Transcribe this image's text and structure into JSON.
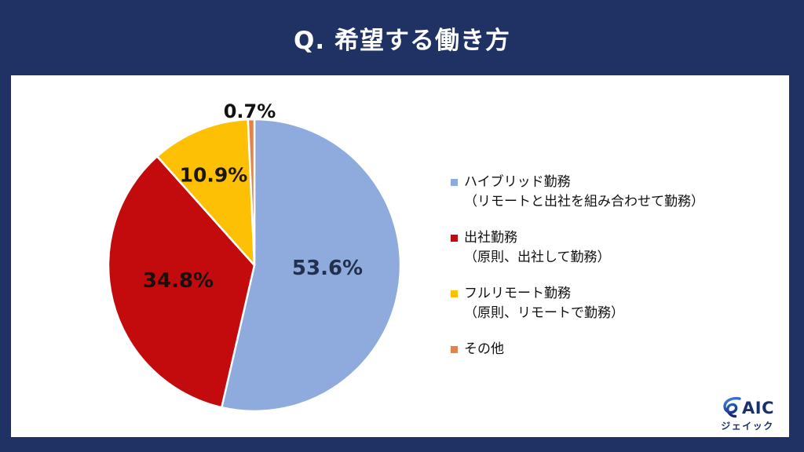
{
  "header": {
    "title": "Q. 希望する働き方"
  },
  "chart_data": {
    "type": "pie",
    "title": "Q. 希望する働き方",
    "unit": "%",
    "direction": "clockwise",
    "start_angle_deg": 0,
    "legend_position": "right",
    "slices": [
      {
        "label": "ハイブリッド勤務",
        "sublabel": "（リモートと出社を組み合わせて勤務）",
        "value": 53.6,
        "display": "53.6%",
        "color": "#8faadc",
        "label_color": "#22304d"
      },
      {
        "label": "出社勤務",
        "sublabel": "（原則、出社して勤務）",
        "value": 34.8,
        "display": "34.8%",
        "color": "#c30b0e",
        "label_color": "#16110f"
      },
      {
        "label": "フルリモート勤務",
        "sublabel": "（原則、リモートで勤務）",
        "value": 10.9,
        "display": "10.9%",
        "color": "#fdc004",
        "label_color": "#1c160d"
      },
      {
        "label": "その他",
        "sublabel": "",
        "value": 0.7,
        "display": "0.7%",
        "color": "#e1834a",
        "label_color": "#111111"
      }
    ]
  },
  "branding": {
    "logo_text": "AIC",
    "logo_sub": "ジェイック",
    "logo_color": "#1b2f6e"
  },
  "colors": {
    "background": "#1f3263",
    "panel": "#ffffff",
    "title_text": "#ffffff",
    "slice_border": "#ffffff"
  }
}
